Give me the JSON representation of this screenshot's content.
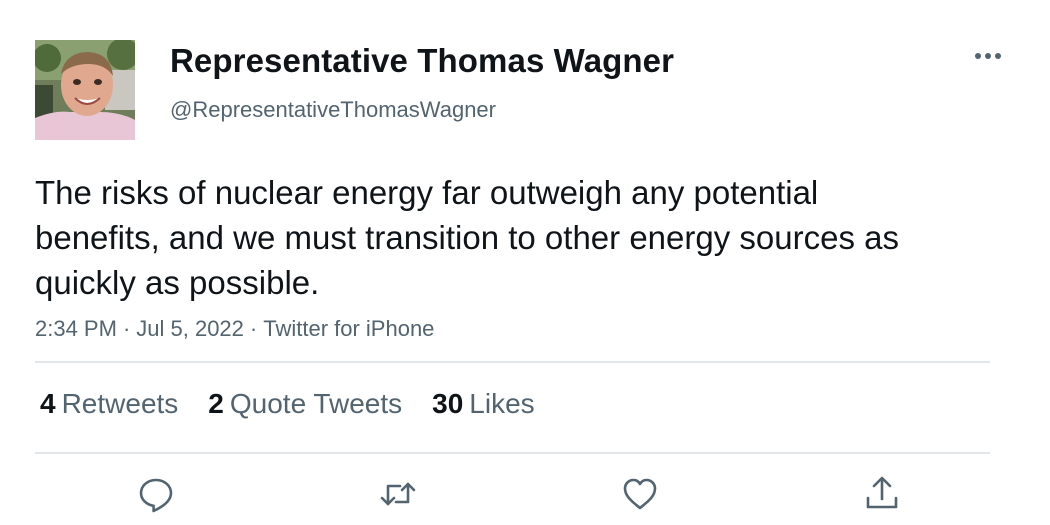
{
  "author": {
    "display_name": "Representative Thomas Wagner",
    "handle": "@RepresentativeThomasWagner",
    "avatar_icon": "profile-photo"
  },
  "tweet": {
    "text": "The risks of nuclear energy far outweigh any potential benefits, and we must transition to other energy sources as quickly as possible.",
    "time": "2:34 PM",
    "date": "Jul 5, 2022",
    "source": "Twitter for iPhone",
    "separator": "·"
  },
  "stats": {
    "retweets": {
      "count": "4",
      "label": "Retweets"
    },
    "quote_tweets": {
      "count": "2",
      "label": "Quote Tweets"
    },
    "likes": {
      "count": "30",
      "label": "Likes"
    }
  },
  "actions": {
    "reply_icon": "reply-icon",
    "retweet_icon": "retweet-icon",
    "like_icon": "heart-icon",
    "share_icon": "share-icon"
  },
  "colors": {
    "primary_text": "#0f1419",
    "secondary_text": "#536471",
    "divider": "#e3e6e8"
  }
}
